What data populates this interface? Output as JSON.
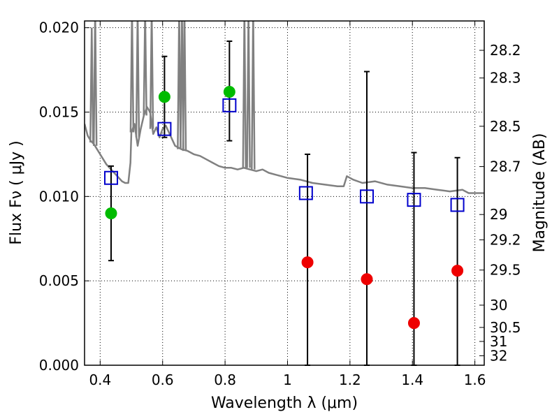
{
  "chart_data": {
    "type": "scatter",
    "xlabel": "Wavelength  λ (μm)",
    "ylabel": "Flux  Fν  ( μJy )",
    "y2label": "Magnitude (AB)",
    "xlim": [
      0.35,
      1.63
    ],
    "ylim": [
      0.0,
      0.0204
    ],
    "grid": true,
    "x_ticks": [
      0.4,
      0.6,
      0.8,
      1.0,
      1.2,
      1.4,
      1.6
    ],
    "x_tick_labels": [
      "0.4",
      "0.6",
      "0.8",
      "1",
      "1.2",
      "1.4",
      "1.6"
    ],
    "y_ticks": [
      0.0,
      0.005,
      0.01,
      0.015,
      0.02
    ],
    "y_tick_labels": [
      "0.000",
      "0.005",
      "0.010",
      "0.015",
      "0.020"
    ],
    "y2_ticks": [
      {
        "label": "28.2",
        "flux": 0.01866
      },
      {
        "label": "28.3",
        "flux": 0.01702
      },
      {
        "label": "28.5",
        "flux": 0.01416
      },
      {
        "label": "28.7",
        "flux": 0.01177
      },
      {
        "label": "29",
        "flux": 0.00893
      },
      {
        "label": "29.2",
        "flux": 0.00743
      },
      {
        "label": "29.5",
        "flux": 0.00564
      },
      {
        "label": "30",
        "flux": 0.00356
      },
      {
        "label": "30.5",
        "flux": 0.00224
      },
      {
        "label": "31",
        "flux": 0.00141
      },
      {
        "label": "32",
        "flux": 0.00056
      }
    ],
    "model_spectrum": {
      "color": "#808080",
      "points": [
        [
          0.35,
          0.0143
        ],
        [
          0.36,
          0.0136
        ],
        [
          0.37,
          0.0133
        ],
        [
          0.38,
          0.0131
        ],
        [
          0.39,
          0.0128
        ],
        [
          0.4,
          0.0125
        ],
        [
          0.41,
          0.0122
        ],
        [
          0.42,
          0.0119
        ],
        [
          0.43,
          0.0117
        ],
        [
          0.44,
          0.0115
        ],
        [
          0.45,
          0.0113
        ],
        [
          0.46,
          0.0111
        ],
        [
          0.47,
          0.0109
        ],
        [
          0.48,
          0.0108
        ],
        [
          0.49,
          0.0108
        ],
        [
          0.497,
          0.012
        ],
        [
          0.5,
          0.0138
        ],
        [
          0.51,
          0.0143
        ],
        [
          0.52,
          0.013
        ],
        [
          0.53,
          0.014
        ],
        [
          0.54,
          0.0148
        ],
        [
          0.55,
          0.0153
        ],
        [
          0.56,
          0.015
        ],
        [
          0.57,
          0.0137
        ],
        [
          0.58,
          0.0141
        ],
        [
          0.59,
          0.0135
        ],
        [
          0.6,
          0.014
        ],
        [
          0.61,
          0.0142
        ],
        [
          0.62,
          0.0138
        ],
        [
          0.64,
          0.013
        ],
        [
          0.66,
          0.0128
        ],
        [
          0.68,
          0.0127
        ],
        [
          0.7,
          0.0125
        ],
        [
          0.72,
          0.0124
        ],
        [
          0.74,
          0.0122
        ],
        [
          0.76,
          0.012
        ],
        [
          0.78,
          0.0118
        ],
        [
          0.8,
          0.0117
        ],
        [
          0.82,
          0.0117
        ],
        [
          0.84,
          0.0116
        ],
        [
          0.86,
          0.0117
        ],
        [
          0.88,
          0.0116
        ],
        [
          0.9,
          0.0115
        ],
        [
          0.92,
          0.0116
        ],
        [
          0.94,
          0.0114
        ],
        [
          0.96,
          0.0113
        ],
        [
          0.98,
          0.0112
        ],
        [
          1.0,
          0.0111
        ],
        [
          1.04,
          0.011
        ],
        [
          1.08,
          0.0108
        ],
        [
          1.12,
          0.0107
        ],
        [
          1.16,
          0.0106
        ],
        [
          1.18,
          0.0106
        ],
        [
          1.19,
          0.0112
        ],
        [
          1.21,
          0.011
        ],
        [
          1.24,
          0.0108
        ],
        [
          1.28,
          0.0109
        ],
        [
          1.32,
          0.0107
        ],
        [
          1.36,
          0.0106
        ],
        [
          1.4,
          0.0105
        ],
        [
          1.44,
          0.0105
        ],
        [
          1.48,
          0.0104
        ],
        [
          1.52,
          0.0103
        ],
        [
          1.56,
          0.0104
        ],
        [
          1.58,
          0.0102
        ],
        [
          1.63,
          0.0102
        ]
      ],
      "emission_spikes": [
        {
          "x": 0.373,
          "base": 0.0132,
          "peak": 0.02
        },
        {
          "x": 0.384,
          "base": 0.013,
          "peak": 0.021
        },
        {
          "x": 0.502,
          "base": 0.0138,
          "peak": 0.021
        },
        {
          "x": 0.52,
          "base": 0.0135,
          "peak": 0.021
        },
        {
          "x": 0.544,
          "base": 0.0148,
          "peak": 0.021
        },
        {
          "x": 0.565,
          "base": 0.014,
          "peak": 0.021
        },
        {
          "x": 0.653,
          "base": 0.0128,
          "peak": 0.021
        },
        {
          "x": 0.662,
          "base": 0.0128,
          "peak": 0.021
        },
        {
          "x": 0.67,
          "base": 0.0127,
          "peak": 0.021
        },
        {
          "x": 0.862,
          "base": 0.0117,
          "peak": 0.021
        },
        {
          "x": 0.875,
          "base": 0.0117,
          "peak": 0.021
        },
        {
          "x": 0.89,
          "base": 0.0116,
          "peak": 0.021
        }
      ]
    },
    "series": [
      {
        "marker": "square",
        "color": "#0000cc",
        "points": [
          {
            "x": 0.435,
            "y": 0.0111
          },
          {
            "x": 0.606,
            "y": 0.014
          },
          {
            "x": 0.814,
            "y": 0.0154
          },
          {
            "x": 1.059,
            "y": 0.0102
          },
          {
            "x": 1.254,
            "y": 0.01
          },
          {
            "x": 1.405,
            "y": 0.0098
          },
          {
            "x": 1.544,
            "y": 0.0095
          }
        ]
      },
      {
        "marker": "circle",
        "color": "#00bb00",
        "points": [
          {
            "x": 0.435,
            "y": 0.009,
            "err_low": 0.0062,
            "err_high": 0.0118
          },
          {
            "x": 0.606,
            "y": 0.0159,
            "err_low": 0.0135,
            "err_high": 0.0183
          },
          {
            "x": 0.814,
            "y": 0.0162,
            "err_low": 0.0133,
            "err_high": 0.0192
          }
        ]
      },
      {
        "marker": "circle",
        "color": "#ee0000",
        "points": [
          {
            "x": 1.064,
            "y": 0.0061,
            "err_low": 0.0,
            "err_high": 0.0125
          },
          {
            "x": 1.254,
            "y": 0.0051,
            "err_low": 0.0,
            "err_high": 0.0174
          },
          {
            "x": 1.405,
            "y": 0.0025,
            "err_low": 0.0,
            "err_high": 0.0126
          },
          {
            "x": 1.544,
            "y": 0.0056,
            "err_low": 0.0,
            "err_high": 0.0123
          }
        ]
      }
    ]
  }
}
